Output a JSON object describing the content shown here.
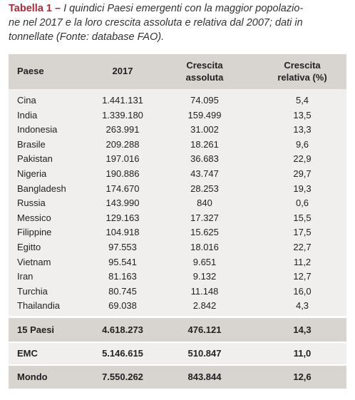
{
  "caption": {
    "label": "Tabella 1 –",
    "lines": [
      "I quindici Paesi emergenti con la maggior popolazio-",
      "ne nel 2017 e la loro crescita assoluta e relativa dal 2007; dati in",
      "tonnellate (Fonte: database FAO)."
    ]
  },
  "table": {
    "header": [
      [
        "Paese"
      ],
      [
        "2017"
      ],
      [
        "Crescita",
        "assoluta"
      ],
      [
        "Crescita",
        "relativa (%)"
      ]
    ],
    "rows": [
      [
        "Cina",
        "1.441.131",
        "74.095",
        "5,4"
      ],
      [
        "India",
        "1.339.180",
        "159.499",
        "13,5"
      ],
      [
        "Indonesia",
        "263.991",
        "31.002",
        "13,3"
      ],
      [
        "Brasile",
        "209.288",
        "18.261",
        "9,6"
      ],
      [
        "Pakistan",
        "197.016",
        "36.683",
        "22,9"
      ],
      [
        "Nigeria",
        "190.886",
        "43.747",
        "29,7"
      ],
      [
        "Bangladesh",
        "174.670",
        "28.253",
        "19,3"
      ],
      [
        "Russia",
        "143.990",
        "840",
        "0,6"
      ],
      [
        "Messico",
        "129.163",
        "17.327",
        "15,5"
      ],
      [
        "Filippine",
        "104.918",
        "15.625",
        "17,5"
      ],
      [
        "Egitto",
        "97.553",
        "18.016",
        "22,7"
      ],
      [
        "Vietnam",
        "95.541",
        "9.651",
        "11,2"
      ],
      [
        "Iran",
        "81.163",
        "9.132",
        "12,7"
      ],
      [
        "Turchia",
        "80.745",
        "11.148",
        "16,0"
      ],
      [
        "Thailandia",
        "69.038",
        "2.842",
        "4,3"
      ]
    ],
    "totals": [
      [
        "15 Paesi",
        "4.618.273",
        "476.121",
        "14,3"
      ],
      [
        "EMC",
        "5.146.615",
        "510.847",
        "11,0"
      ],
      [
        "Mondo",
        "7.550.262",
        "843.844",
        "12,6"
      ]
    ]
  }
}
